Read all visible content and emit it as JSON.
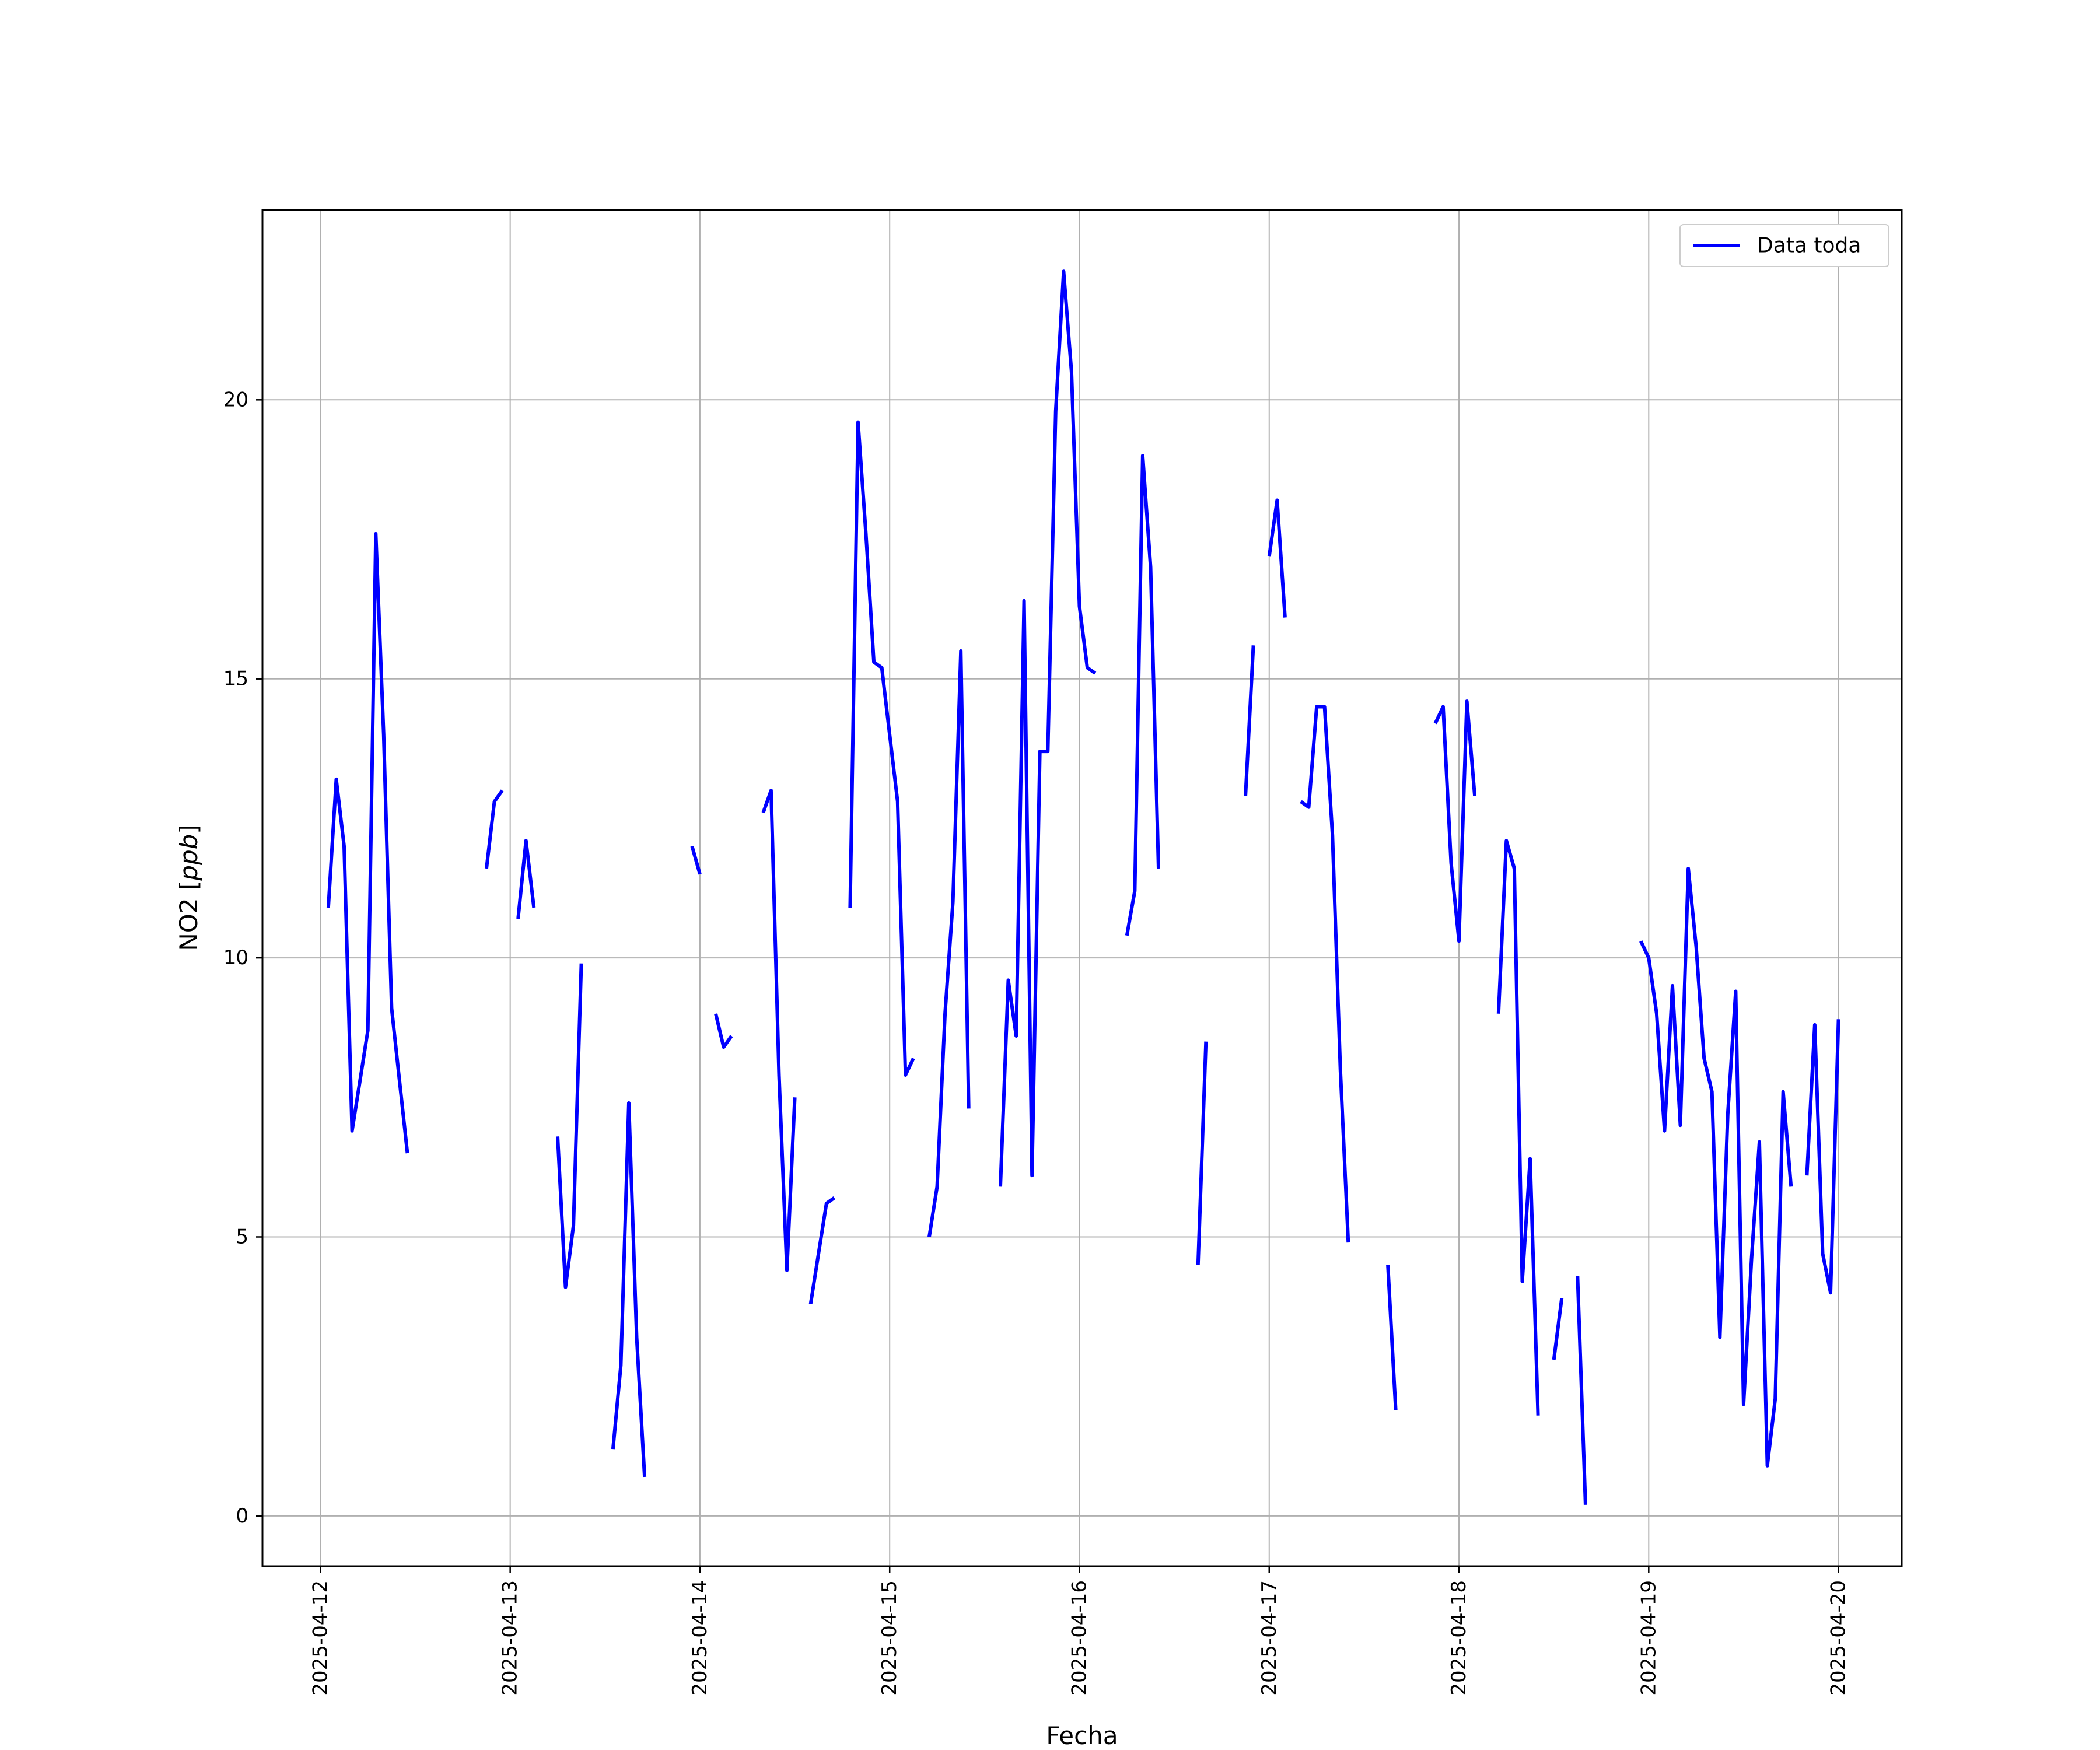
{
  "chart_data": {
    "type": "line",
    "xlabel": "Fecha",
    "ylabel": "NO2 [ppb]",
    "ylabel_parts": {
      "main": "NO2 [",
      "italic": "ppb",
      "end": "]"
    },
    "x_type": "date",
    "xlim": [
      "2025-04-11 16:40",
      "2025-04-20 08:00"
    ],
    "ylim": [
      -0.9,
      23.4
    ],
    "x_ticks": [
      "2025-04-12",
      "2025-04-13",
      "2025-04-14",
      "2025-04-15",
      "2025-04-16",
      "2025-04-17",
      "2025-04-18",
      "2025-04-19",
      "2025-04-20"
    ],
    "y_ticks": [
      0,
      5,
      10,
      15,
      20
    ],
    "y_tick_labels": [
      "0",
      "5",
      "10",
      "15",
      "20"
    ],
    "grid": true,
    "legend_position": "top-right",
    "series": [
      {
        "name": "Data toda",
        "color": "#0000ff",
        "segments": [
          [
            [
              "2025-04-12 01:00",
              10.9
            ],
            [
              "2025-04-12 02:00",
              13.2
            ],
            [
              "2025-04-12 03:00",
              12.0
            ],
            [
              "2025-04-12 04:00",
              6.9
            ],
            [
              "2025-04-12 05:00",
              7.8
            ],
            [
              "2025-04-12 06:00",
              8.7
            ],
            [
              "2025-04-12 07:00",
              17.6
            ],
            [
              "2025-04-12 08:00",
              14.0
            ],
            [
              "2025-04-12 09:00",
              9.1
            ],
            [
              "2025-04-12 10:00",
              7.8
            ],
            [
              "2025-04-12 11:00",
              6.5
            ]
          ],
          [
            [
              "2025-04-12 21:00",
              11.6
            ],
            [
              "2025-04-12 22:00",
              12.8
            ],
            [
              "2025-04-12 23:00",
              13.0
            ]
          ],
          [
            [
              "2025-04-13 01:00",
              10.7
            ],
            [
              "2025-04-13 02:00",
              12.1
            ],
            [
              "2025-04-13 03:00",
              10.9
            ]
          ],
          [
            [
              "2025-04-13 06:00",
              6.8
            ],
            [
              "2025-04-13 07:00",
              4.1
            ],
            [
              "2025-04-13 08:00",
              5.2
            ],
            [
              "2025-04-13 09:00",
              9.9
            ]
          ],
          [
            [
              "2025-04-13 13:00",
              1.2
            ],
            [
              "2025-04-13 14:00",
              2.7
            ],
            [
              "2025-04-13 15:00",
              7.4
            ],
            [
              "2025-04-13 16:00",
              3.2
            ],
            [
              "2025-04-13 17:00",
              0.7
            ]
          ],
          [
            [
              "2025-04-13 23:00",
              12.0
            ],
            [
              "2025-04-14 00:00",
              11.5
            ]
          ],
          [
            [
              "2025-04-14 02:00",
              9.0
            ],
            [
              "2025-04-14 03:00",
              8.4
            ],
            [
              "2025-04-14 04:00",
              8.6
            ]
          ],
          [
            [
              "2025-04-14 08:00",
              12.6
            ],
            [
              "2025-04-14 09:00",
              13.0
            ],
            [
              "2025-04-14 10:00",
              7.9
            ],
            [
              "2025-04-14 11:00",
              4.4
            ],
            [
              "2025-04-14 12:00",
              7.5
            ]
          ],
          [
            [
              "2025-04-14 14:00",
              3.8
            ],
            [
              "2025-04-14 15:00",
              4.7
            ],
            [
              "2025-04-14 16:00",
              5.6
            ],
            [
              "2025-04-14 17:00",
              5.7
            ]
          ],
          [
            [
              "2025-04-14 19:00",
              10.9
            ],
            [
              "2025-04-14 20:00",
              19.6
            ],
            [
              "2025-04-14 21:00",
              17.6
            ],
            [
              "2025-04-14 22:00",
              15.3
            ],
            [
              "2025-04-14 23:00",
              15.2
            ],
            [
              "2025-04-15 00:00",
              14.0
            ],
            [
              "2025-04-15 01:00",
              12.8
            ],
            [
              "2025-04-15 02:00",
              7.9
            ],
            [
              "2025-04-15 03:00",
              8.2
            ]
          ],
          [
            [
              "2025-04-15 05:00",
              5.0
            ],
            [
              "2025-04-15 06:00",
              5.9
            ],
            [
              "2025-04-15 07:00",
              9.0
            ],
            [
              "2025-04-15 08:00",
              11.0
            ],
            [
              "2025-04-15 09:00",
              15.5
            ],
            [
              "2025-04-15 10:00",
              7.3
            ]
          ],
          [
            [
              "2025-04-15 14:00",
              5.9
            ],
            [
              "2025-04-15 15:00",
              9.6
            ],
            [
              "2025-04-15 16:00",
              8.6
            ],
            [
              "2025-04-15 17:00",
              16.4
            ],
            [
              "2025-04-15 18:00",
              6.1
            ],
            [
              "2025-04-15 19:00",
              13.7
            ],
            [
              "2025-04-15 20:00",
              13.7
            ],
            [
              "2025-04-15 21:00",
              19.8
            ],
            [
              "2025-04-15 22:00",
              22.3
            ],
            [
              "2025-04-15 23:00",
              20.5
            ],
            [
              "2025-04-16 00:00",
              16.3
            ],
            [
              "2025-04-16 01:00",
              15.2
            ],
            [
              "2025-04-16 02:00",
              15.1
            ]
          ],
          [
            [
              "2025-04-16 06:00",
              10.4
            ],
            [
              "2025-04-16 07:00",
              11.2
            ],
            [
              "2025-04-16 08:00",
              19.0
            ],
            [
              "2025-04-16 09:00",
              17.0
            ],
            [
              "2025-04-16 10:00",
              11.6
            ]
          ],
          [
            [
              "2025-04-16 15:00",
              4.5
            ],
            [
              "2025-04-16 16:00",
              8.5
            ]
          ],
          [
            [
              "2025-04-16 21:00",
              12.9
            ],
            [
              "2025-04-16 22:00",
              15.6
            ]
          ],
          [
            [
              "2025-04-17 00:00",
              17.2
            ],
            [
              "2025-04-17 01:00",
              18.2
            ],
            [
              "2025-04-17 02:00",
              16.1
            ]
          ],
          [
            [
              "2025-04-17 04:00",
              12.8
            ],
            [
              "2025-04-17 05:00",
              12.7
            ],
            [
              "2025-04-17 06:00",
              14.5
            ],
            [
              "2025-04-17 07:00",
              14.5
            ],
            [
              "2025-04-17 08:00",
              12.2
            ],
            [
              "2025-04-17 09:00",
              8.0
            ],
            [
              "2025-04-17 10:00",
              4.9
            ]
          ],
          [
            [
              "2025-04-17 15:00",
              4.5
            ],
            [
              "2025-04-17 16:00",
              1.9
            ]
          ],
          [
            [
              "2025-04-17 21:00",
              14.2
            ],
            [
              "2025-04-17 22:00",
              14.5
            ],
            [
              "2025-04-17 23:00",
              11.7
            ],
            [
              "2025-04-18 00:00",
              10.3
            ],
            [
              "2025-04-18 01:00",
              14.6
            ],
            [
              "2025-04-18 02:00",
              12.9
            ]
          ],
          [
            [
              "2025-04-18 05:00",
              9.0
            ],
            [
              "2025-04-18 06:00",
              12.1
            ],
            [
              "2025-04-18 07:00",
              11.6
            ],
            [
              "2025-04-18 08:00",
              4.2
            ],
            [
              "2025-04-18 09:00",
              6.4
            ],
            [
              "2025-04-18 10:00",
              1.8
            ]
          ],
          [
            [
              "2025-04-18 12:00",
              2.8
            ],
            [
              "2025-04-18 13:00",
              3.9
            ]
          ],
          [
            [
              "2025-04-18 15:00",
              4.3
            ],
            [
              "2025-04-18 16:00",
              0.2
            ]
          ],
          [
            [
              "2025-04-18 23:00",
              10.3
            ],
            [
              "2025-04-19 00:00",
              10.0
            ],
            [
              "2025-04-19 01:00",
              9.0
            ],
            [
              "2025-04-19 02:00",
              6.9
            ],
            [
              "2025-04-19 03:00",
              9.5
            ],
            [
              "2025-04-19 04:00",
              7.0
            ],
            [
              "2025-04-19 05:00",
              11.6
            ],
            [
              "2025-04-19 06:00",
              10.2
            ],
            [
              "2025-04-19 07:00",
              8.2
            ],
            [
              "2025-04-19 08:00",
              7.6
            ],
            [
              "2025-04-19 09:00",
              3.2
            ],
            [
              "2025-04-19 10:00",
              7.2
            ],
            [
              "2025-04-19 11:00",
              9.4
            ],
            [
              "2025-04-19 12:00",
              2.0
            ],
            [
              "2025-04-19 13:00",
              4.6
            ],
            [
              "2025-04-19 14:00",
              6.7
            ],
            [
              "2025-04-19 15:00",
              0.9
            ],
            [
              "2025-04-19 16:00",
              2.1
            ],
            [
              "2025-04-19 17:00",
              7.6
            ],
            [
              "2025-04-19 18:00",
              5.9
            ]
          ],
          [
            [
              "2025-04-19 20:00",
              6.1
            ],
            [
              "2025-04-19 21:00",
              8.8
            ],
            [
              "2025-04-19 22:00",
              4.7
            ],
            [
              "2025-04-19 23:00",
              4.0
            ],
            [
              "2025-04-20 00:00",
              8.9
            ]
          ]
        ]
      }
    ]
  }
}
